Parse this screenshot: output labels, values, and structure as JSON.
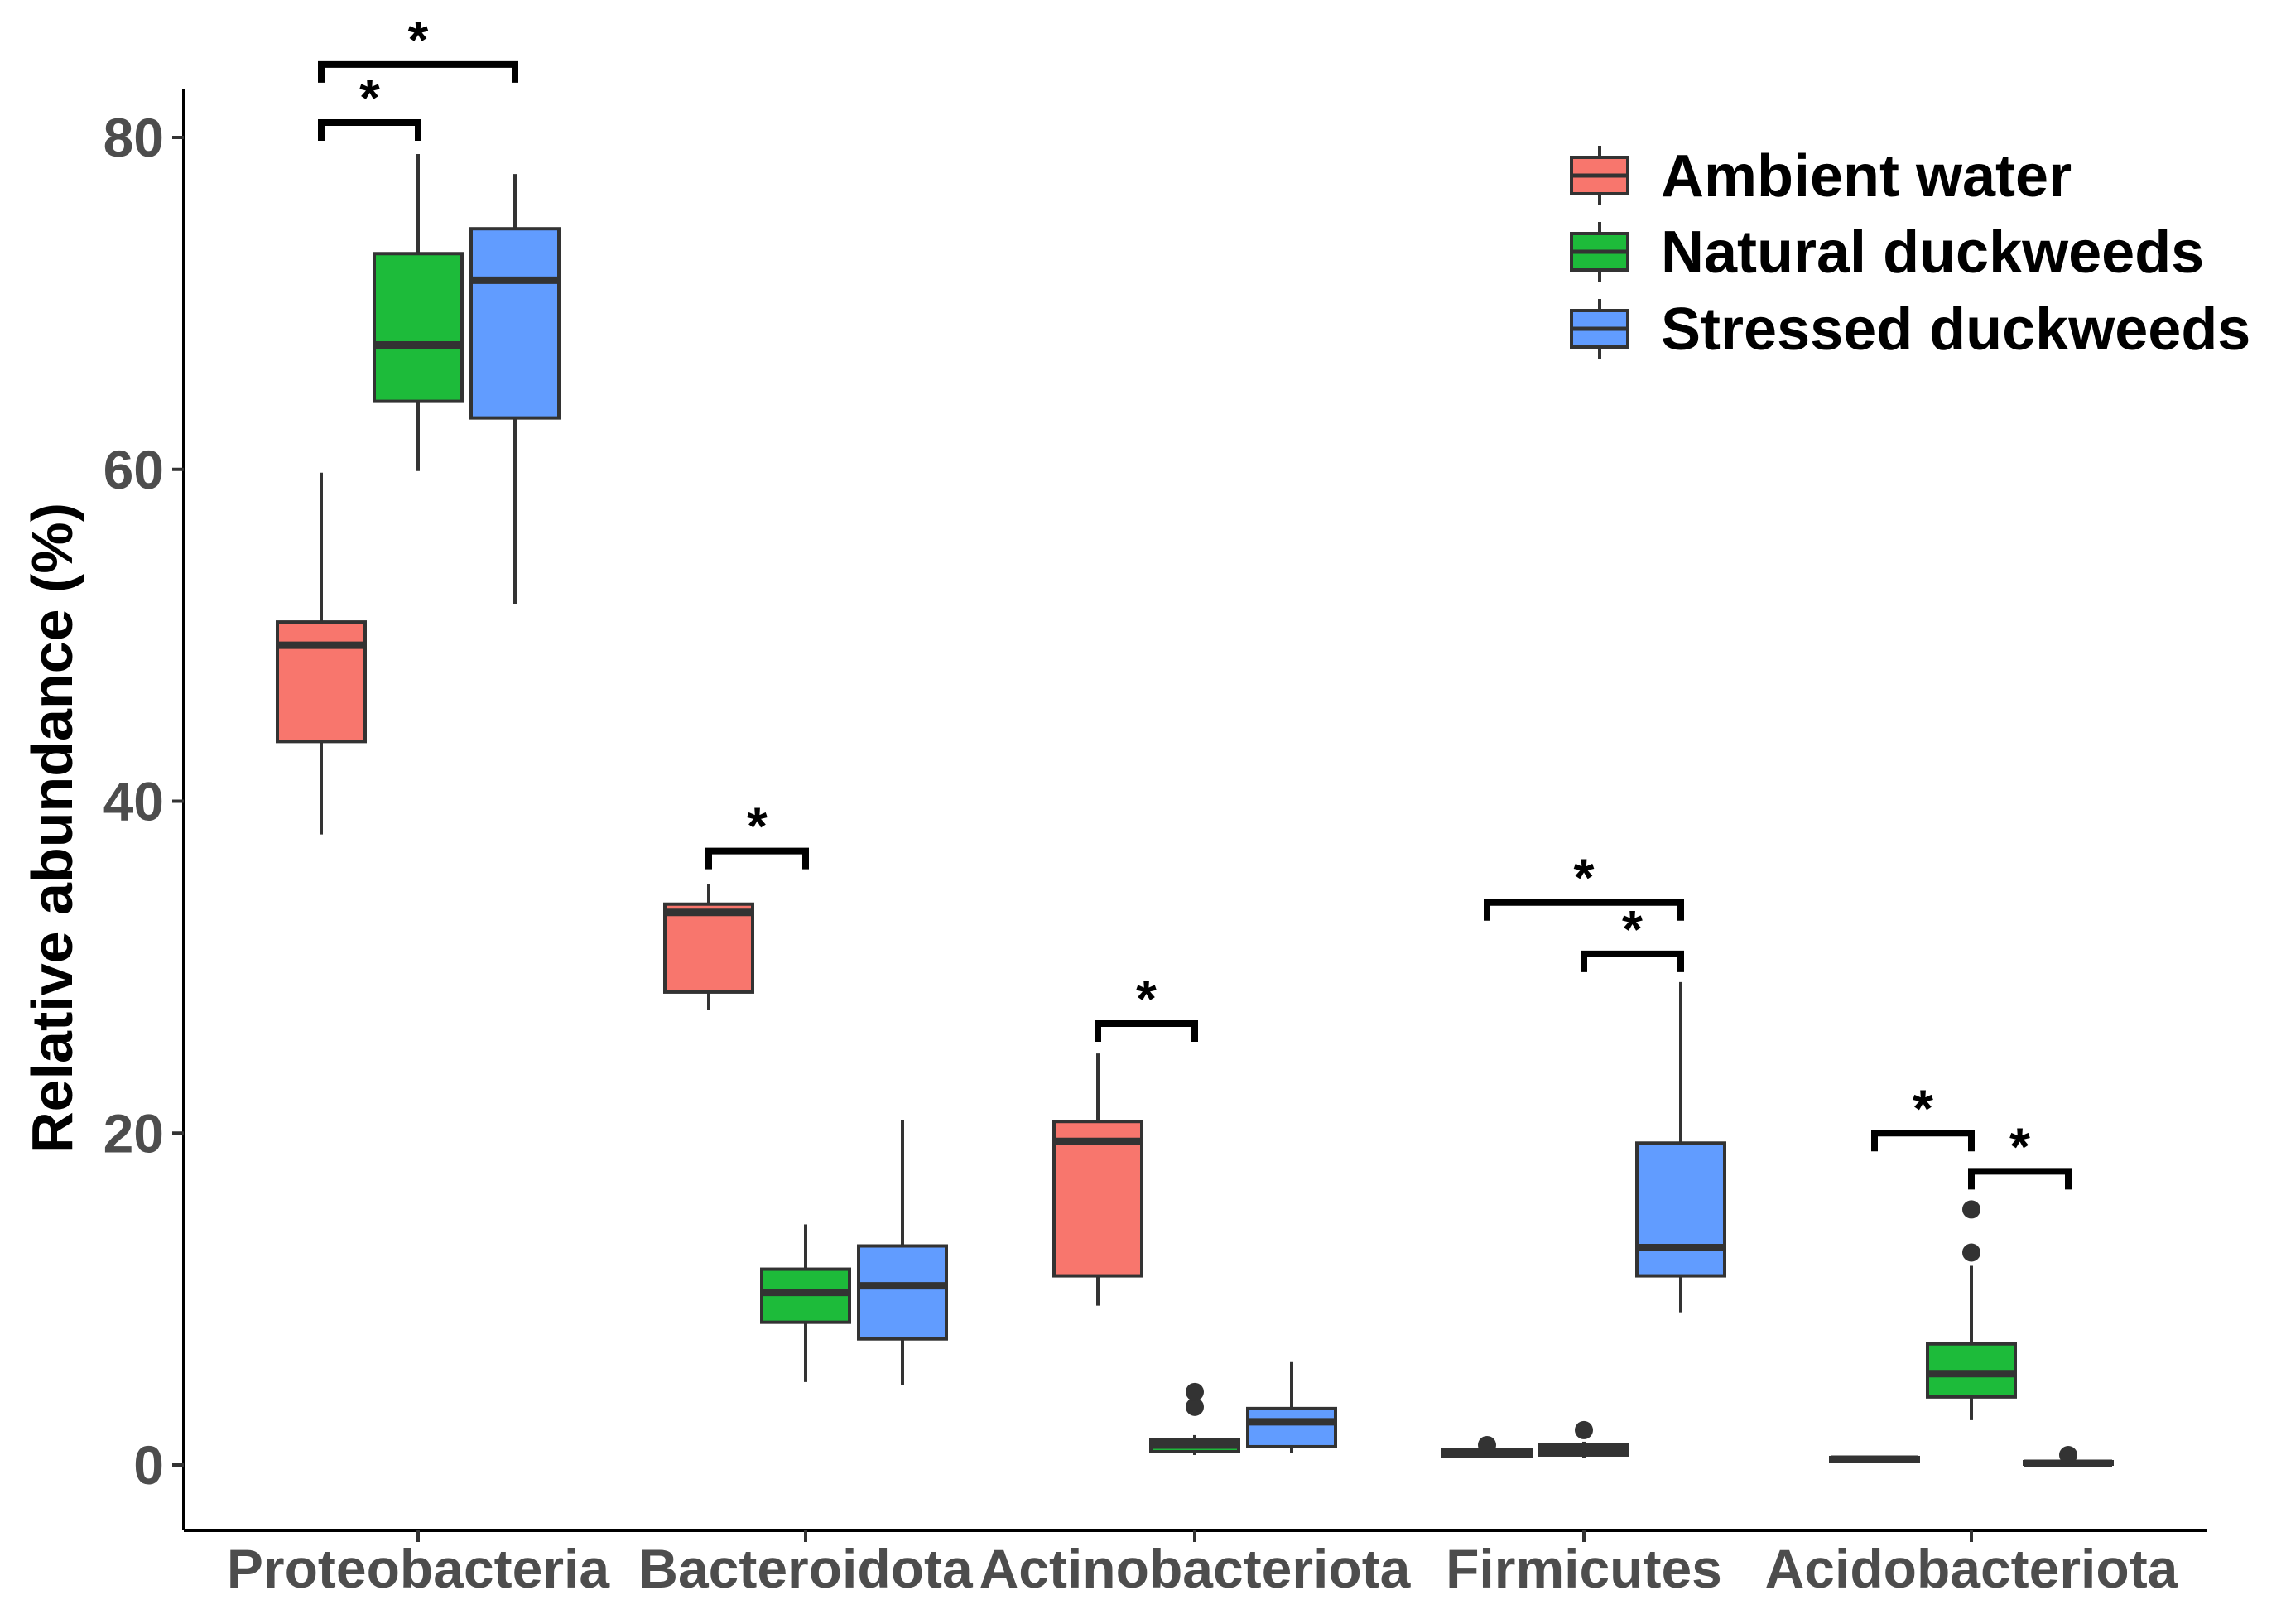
{
  "chart_data": {
    "type": "boxplot",
    "title": "",
    "xlabel": "",
    "ylabel": "Relative abundance (%)",
    "ylim": [
      -4,
      82
    ],
    "yticks": [
      0,
      20,
      40,
      60,
      80
    ],
    "grid": false,
    "legend_position": "top-right",
    "categories": [
      "Proteobacteria",
      "Bacteroidota",
      "Actinobacteriota",
      "Firmicutes",
      "Acidobacteriota"
    ],
    "series": [
      {
        "name": "Ambient water",
        "color": "#F8766D",
        "boxes": [
          {
            "min": 38.0,
            "q1": 43.6,
            "median": 49.4,
            "q3": 50.8,
            "max": 59.8,
            "outliers": []
          },
          {
            "min": 27.4,
            "q1": 28.5,
            "median": 33.3,
            "q3": 33.8,
            "max": 35.0,
            "outliers": []
          },
          {
            "min": 9.6,
            "q1": 11.4,
            "median": 19.5,
            "q3": 20.7,
            "max": 24.8,
            "outliers": []
          },
          {
            "min": 0.4,
            "q1": 0.5,
            "median": 0.7,
            "q3": 0.9,
            "max": 1.0,
            "outliers": [
              1.2
            ]
          },
          {
            "min": 0.2,
            "q1": 0.25,
            "median": 0.35,
            "q3": 0.45,
            "max": 0.5,
            "outliers": []
          }
        ]
      },
      {
        "name": "Natural duckweeds",
        "color": "#1DBB3A",
        "boxes": [
          {
            "min": 59.9,
            "q1": 64.1,
            "median": 67.5,
            "q3": 73.0,
            "max": 79.0,
            "outliers": []
          },
          {
            "min": 5.0,
            "q1": 8.6,
            "median": 10.4,
            "q3": 11.8,
            "max": 14.5,
            "outliers": []
          },
          {
            "min": 0.6,
            "q1": 0.8,
            "median": 1.2,
            "q3": 1.5,
            "max": 1.8,
            "outliers": [
              3.5,
              4.4
            ]
          },
          {
            "min": 0.4,
            "q1": 0.6,
            "median": 0.9,
            "q3": 1.2,
            "max": 1.4,
            "outliers": [
              2.1
            ]
          },
          {
            "min": 2.7,
            "q1": 4.1,
            "median": 5.5,
            "q3": 7.3,
            "max": 12.0,
            "outliers": [
              12.8,
              15.4
            ]
          }
        ]
      },
      {
        "name": "Stressed duckweeds",
        "color": "#619CFF",
        "boxes": [
          {
            "min": 51.9,
            "q1": 63.1,
            "median": 71.4,
            "q3": 74.5,
            "max": 77.8,
            "outliers": []
          },
          {
            "min": 4.8,
            "q1": 7.6,
            "median": 10.8,
            "q3": 13.2,
            "max": 20.8,
            "outliers": []
          },
          {
            "min": 0.7,
            "q1": 1.1,
            "median": 2.6,
            "q3": 3.4,
            "max": 6.2,
            "outliers": []
          },
          {
            "min": 9.2,
            "q1": 11.4,
            "median": 13.1,
            "q3": 19.4,
            "max": 29.1,
            "outliers": []
          },
          {
            "min": 0.0,
            "q1": 0.05,
            "median": 0.1,
            "q3": 0.2,
            "max": 0.3,
            "outliers": [
              0.6
            ]
          }
        ]
      }
    ],
    "significance": [
      {
        "category": 0,
        "from": 0,
        "to": 1,
        "level": 80.9,
        "label": "*"
      },
      {
        "category": 0,
        "from": 0,
        "to": 2,
        "level": 84.4,
        "label": "*"
      },
      {
        "category": 1,
        "from": 0,
        "to": 1,
        "level": 37.0,
        "label": "*"
      },
      {
        "category": 2,
        "from": 0,
        "to": 1,
        "level": 26.6,
        "label": "*"
      },
      {
        "category": 3,
        "from": 0,
        "to": 2,
        "level": 33.9,
        "label": "*"
      },
      {
        "category": 3,
        "from": 1,
        "to": 2,
        "level": 30.8,
        "label": "*"
      },
      {
        "category": 4,
        "from": 0,
        "to": 1,
        "level": 20.0,
        "label": "*"
      },
      {
        "category": 4,
        "from": 1,
        "to": 2,
        "level": 17.7,
        "label": "*"
      }
    ]
  }
}
